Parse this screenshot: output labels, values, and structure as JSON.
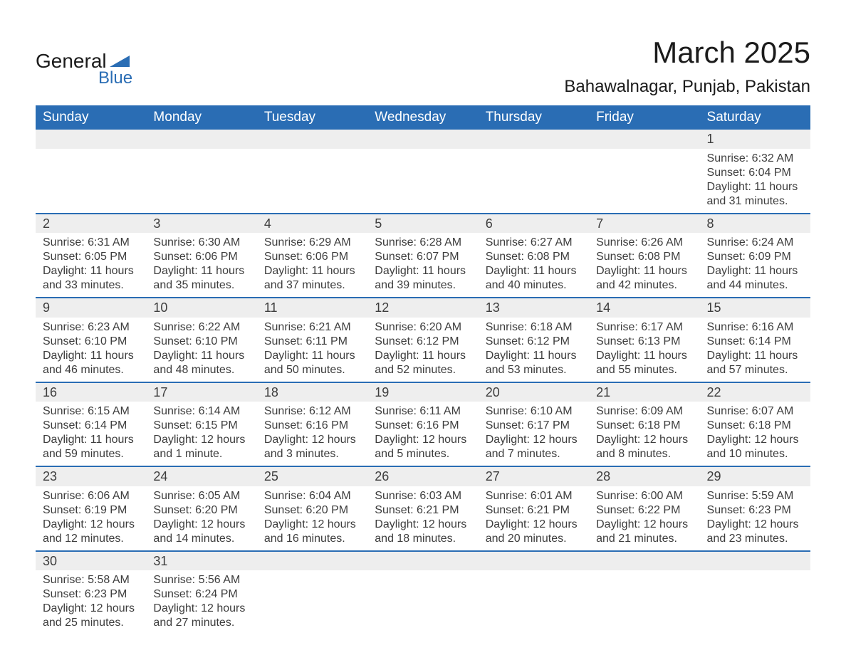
{
  "logo": {
    "text_top": "General",
    "text_bottom": "Blue",
    "triangle_color": "#2a6db4"
  },
  "header": {
    "month_title": "March 2025",
    "location": "Bahawalnagar, Punjab, Pakistan"
  },
  "styling": {
    "header_bg": "#2a6db4",
    "header_text": "#ffffff",
    "row_divider": "#2a6db4",
    "daynum_bg": "#eeeeee",
    "body_text": "#3d3d3d",
    "title_fontsize": 42,
    "location_fontsize": 24,
    "dayheader_fontsize": 19,
    "cell_fontsize": 16
  },
  "day_headers": [
    "Sunday",
    "Monday",
    "Tuesday",
    "Wednesday",
    "Thursday",
    "Friday",
    "Saturday"
  ],
  "labels": {
    "sunrise": "Sunrise:",
    "sunset": "Sunset:",
    "daylight": "Daylight:"
  },
  "weeks": [
    [
      null,
      null,
      null,
      null,
      null,
      null,
      {
        "n": "1",
        "sunrise": "6:32 AM",
        "sunset": "6:04 PM",
        "daylight": "11 hours and 31 minutes."
      }
    ],
    [
      {
        "n": "2",
        "sunrise": "6:31 AM",
        "sunset": "6:05 PM",
        "daylight": "11 hours and 33 minutes."
      },
      {
        "n": "3",
        "sunrise": "6:30 AM",
        "sunset": "6:06 PM",
        "daylight": "11 hours and 35 minutes."
      },
      {
        "n": "4",
        "sunrise": "6:29 AM",
        "sunset": "6:06 PM",
        "daylight": "11 hours and 37 minutes."
      },
      {
        "n": "5",
        "sunrise": "6:28 AM",
        "sunset": "6:07 PM",
        "daylight": "11 hours and 39 minutes."
      },
      {
        "n": "6",
        "sunrise": "6:27 AM",
        "sunset": "6:08 PM",
        "daylight": "11 hours and 40 minutes."
      },
      {
        "n": "7",
        "sunrise": "6:26 AM",
        "sunset": "6:08 PM",
        "daylight": "11 hours and 42 minutes."
      },
      {
        "n": "8",
        "sunrise": "6:24 AM",
        "sunset": "6:09 PM",
        "daylight": "11 hours and 44 minutes."
      }
    ],
    [
      {
        "n": "9",
        "sunrise": "6:23 AM",
        "sunset": "6:10 PM",
        "daylight": "11 hours and 46 minutes."
      },
      {
        "n": "10",
        "sunrise": "6:22 AM",
        "sunset": "6:10 PM",
        "daylight": "11 hours and 48 minutes."
      },
      {
        "n": "11",
        "sunrise": "6:21 AM",
        "sunset": "6:11 PM",
        "daylight": "11 hours and 50 minutes."
      },
      {
        "n": "12",
        "sunrise": "6:20 AM",
        "sunset": "6:12 PM",
        "daylight": "11 hours and 52 minutes."
      },
      {
        "n": "13",
        "sunrise": "6:18 AM",
        "sunset": "6:12 PM",
        "daylight": "11 hours and 53 minutes."
      },
      {
        "n": "14",
        "sunrise": "6:17 AM",
        "sunset": "6:13 PM",
        "daylight": "11 hours and 55 minutes."
      },
      {
        "n": "15",
        "sunrise": "6:16 AM",
        "sunset": "6:14 PM",
        "daylight": "11 hours and 57 minutes."
      }
    ],
    [
      {
        "n": "16",
        "sunrise": "6:15 AM",
        "sunset": "6:14 PM",
        "daylight": "11 hours and 59 minutes."
      },
      {
        "n": "17",
        "sunrise": "6:14 AM",
        "sunset": "6:15 PM",
        "daylight": "12 hours and 1 minute."
      },
      {
        "n": "18",
        "sunrise": "6:12 AM",
        "sunset": "6:16 PM",
        "daylight": "12 hours and 3 minutes."
      },
      {
        "n": "19",
        "sunrise": "6:11 AM",
        "sunset": "6:16 PM",
        "daylight": "12 hours and 5 minutes."
      },
      {
        "n": "20",
        "sunrise": "6:10 AM",
        "sunset": "6:17 PM",
        "daylight": "12 hours and 7 minutes."
      },
      {
        "n": "21",
        "sunrise": "6:09 AM",
        "sunset": "6:18 PM",
        "daylight": "12 hours and 8 minutes."
      },
      {
        "n": "22",
        "sunrise": "6:07 AM",
        "sunset": "6:18 PM",
        "daylight": "12 hours and 10 minutes."
      }
    ],
    [
      {
        "n": "23",
        "sunrise": "6:06 AM",
        "sunset": "6:19 PM",
        "daylight": "12 hours and 12 minutes."
      },
      {
        "n": "24",
        "sunrise": "6:05 AM",
        "sunset": "6:20 PM",
        "daylight": "12 hours and 14 minutes."
      },
      {
        "n": "25",
        "sunrise": "6:04 AM",
        "sunset": "6:20 PM",
        "daylight": "12 hours and 16 minutes."
      },
      {
        "n": "26",
        "sunrise": "6:03 AM",
        "sunset": "6:21 PM",
        "daylight": "12 hours and 18 minutes."
      },
      {
        "n": "27",
        "sunrise": "6:01 AM",
        "sunset": "6:21 PM",
        "daylight": "12 hours and 20 minutes."
      },
      {
        "n": "28",
        "sunrise": "6:00 AM",
        "sunset": "6:22 PM",
        "daylight": "12 hours and 21 minutes."
      },
      {
        "n": "29",
        "sunrise": "5:59 AM",
        "sunset": "6:23 PM",
        "daylight": "12 hours and 23 minutes."
      }
    ],
    [
      {
        "n": "30",
        "sunrise": "5:58 AM",
        "sunset": "6:23 PM",
        "daylight": "12 hours and 25 minutes."
      },
      {
        "n": "31",
        "sunrise": "5:56 AM",
        "sunset": "6:24 PM",
        "daylight": "12 hours and 27 minutes."
      },
      null,
      null,
      null,
      null,
      null
    ]
  ]
}
